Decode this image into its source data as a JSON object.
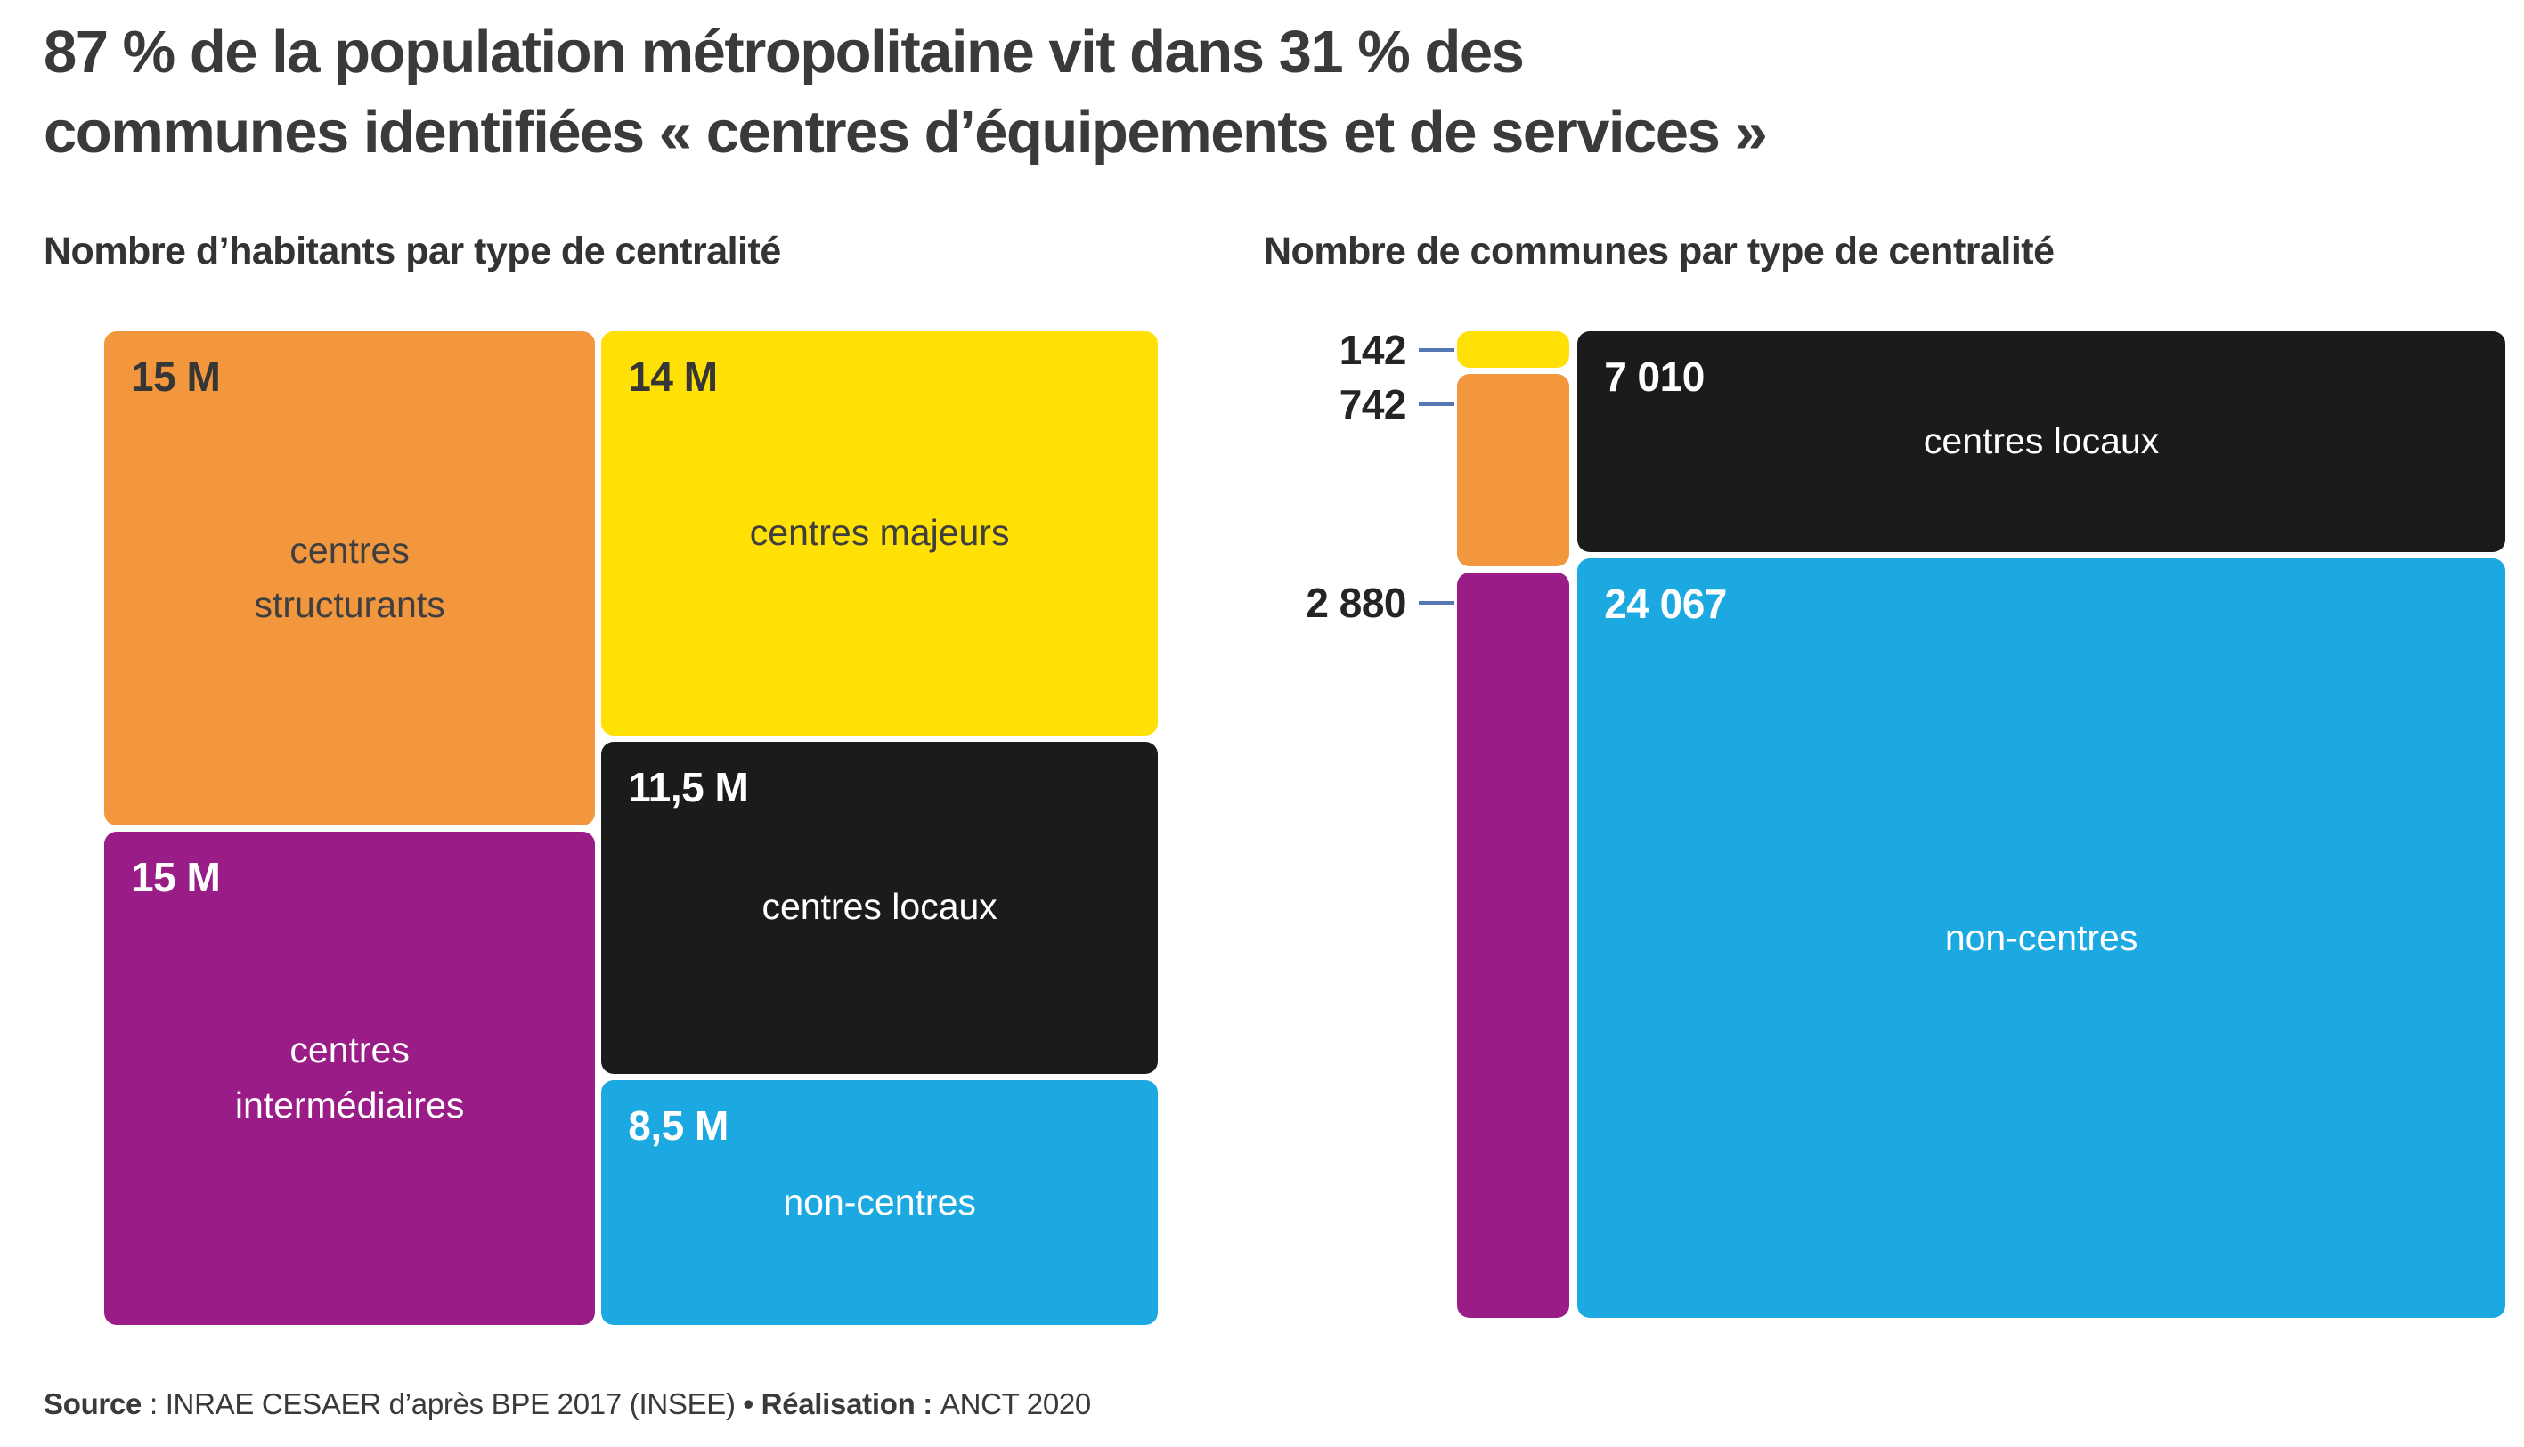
{
  "page": {
    "title_line1": "87 % de la population métropolitaine vit dans 31 % des",
    "title_line2": "communes identifiées « centres d’équipements et de services »",
    "source": {
      "label": "Source",
      "sep": " : ",
      "org": "INRAE CESAER d’après BPE 2017 (INSEE) ",
      "realisation": "• Réalisation : ",
      "credit": "ANCT 2020"
    },
    "colors": {
      "orange": "#F2973E",
      "yellow": "#FFE105",
      "magenta": "#9A1D87",
      "black": "#1B1B1B",
      "blue": "#1CA9E2",
      "connector": "#5577B5",
      "title_text": "#3A3A3A",
      "dark_text": "#363636",
      "light_text": "#FFFFFF",
      "background": "#FFFFFF"
    }
  },
  "chart_data": [
    {
      "type": "treemap",
      "title": "Nombre d’habitants par type de centralité",
      "unit": "millions d’habitants (M)",
      "legend_position": "labels-inside",
      "columns": [
        {
          "weight": 30,
          "boxes": [
            {
              "category": "centres structurants",
              "value": 15,
              "value_label": "15 M",
              "label": "centres structurants",
              "color": "#F2973E",
              "text_mode": "dark"
            },
            {
              "category": "centres intermédiaires",
              "value": 15,
              "value_label": "15 M",
              "label": "centres intermédiaires",
              "color": "#9A1D87",
              "text_mode": "light"
            }
          ]
        },
        {
          "weight": 34,
          "boxes": [
            {
              "category": "centres majeurs",
              "value": 14,
              "value_label": "14 M",
              "label": "centres majeurs",
              "color": "#FFE105",
              "text_mode": "dark"
            },
            {
              "category": "centres locaux",
              "value": 11.5,
              "value_label": "11,5 M",
              "label": "centres locaux",
              "color": "#1B1B1B",
              "text_mode": "light"
            },
            {
              "category": "non-centres",
              "value": 8.5,
              "value_label": "8,5 M",
              "label": "non-centres",
              "color": "#1CA9E2",
              "text_mode": "light"
            }
          ]
        }
      ]
    },
    {
      "type": "treemap",
      "title": "Nombre de communes par type de centralité",
      "unit": "nombre de communes",
      "legend_position": "small-values-outside-left",
      "columns": [
        {
          "weight": 3764,
          "boxes": [
            {
              "category": "centres majeurs",
              "value": 142,
              "outside_label": "142",
              "color": "#FFE105"
            },
            {
              "category": "centres structurants",
              "value": 742,
              "outside_label": "742",
              "color": "#F2973E"
            },
            {
              "category": "centres intermédiaires",
              "value": 2880,
              "outside_label": "2 880",
              "color": "#9A1D87"
            }
          ]
        },
        {
          "weight": 31077,
          "boxes": [
            {
              "category": "centres locaux",
              "value": 7010,
              "value_label": "7 010",
              "label": "centres locaux",
              "color": "#1B1B1B",
              "text_mode": "light"
            },
            {
              "category": "non-centres",
              "value": 24067,
              "value_label": "24 067",
              "label": "non-centres",
              "color": "#1CA9E2",
              "text_mode": "light"
            }
          ]
        }
      ]
    }
  ]
}
